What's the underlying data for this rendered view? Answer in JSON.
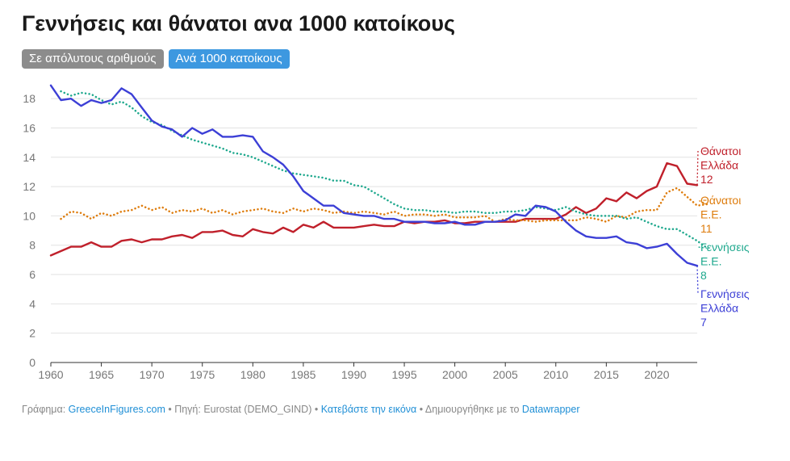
{
  "title": "Γεννήσεις και θάνατοι ανα 1000 κατοίκους",
  "toggles": {
    "absolute": "Σε απόλυτους αριθμούς",
    "per1000": "Ανά 1000 κατοίκους"
  },
  "colors": {
    "deaths_gr": "#c0202b",
    "deaths_eu": "#de7c0c",
    "births_eu": "#1ea88d",
    "births_gr": "#3c3fd6",
    "grid": "#e2e2e2",
    "axis": "#333333"
  },
  "footer": {
    "chart_by_label": "Γράφημα:",
    "chart_by_link": "GreeceInFigures.com",
    "source": "• Πηγή: Eurostat (DEMO_GIND) •",
    "download": "Κατεβάστε την εικόνα",
    "made_with": "• Δημιουργήθηκε με το",
    "datawrapper": "Datawrapper"
  },
  "chart_data": {
    "type": "line",
    "title": "Γεννήσεις και θάνατοι ανα 1000 κατοίκους",
    "xlabel": "",
    "ylabel": "",
    "xlim": [
      1960,
      2024
    ],
    "ylim": [
      0,
      19
    ],
    "x_ticks": [
      "1960",
      "1965",
      "1970",
      "1975",
      "1980",
      "1985",
      "1990",
      "1995",
      "2000",
      "2005",
      "2010",
      "2015",
      "2020"
    ],
    "y_ticks": [
      "0",
      "2",
      "4",
      "6",
      "8",
      "10",
      "12",
      "14",
      "16",
      "18"
    ],
    "series": [
      {
        "key": "deaths_gr",
        "name": "Θάνατοι Ελλάδα",
        "label_lines": [
          "Θάνατοι",
          "Ελλάδα"
        ],
        "end_value": "12",
        "style": "solid",
        "x_start": 1960,
        "values": [
          7.3,
          7.6,
          7.9,
          7.9,
          8.2,
          7.9,
          7.9,
          8.3,
          8.4,
          8.2,
          8.4,
          8.4,
          8.6,
          8.7,
          8.5,
          8.9,
          8.9,
          9.0,
          8.7,
          8.6,
          9.1,
          8.9,
          8.8,
          9.2,
          8.9,
          9.4,
          9.2,
          9.6,
          9.2,
          9.2,
          9.2,
          9.3,
          9.4,
          9.3,
          9.3,
          9.6,
          9.5,
          9.6,
          9.6,
          9.7,
          9.5,
          9.5,
          9.6,
          9.6,
          9.6,
          9.6,
          9.6,
          9.8,
          9.8,
          9.8,
          9.8,
          10.1,
          10.6,
          10.2,
          10.5,
          11.2,
          11.0,
          11.6,
          11.2,
          11.7,
          12.0,
          13.6,
          13.4,
          12.2,
          12.1
        ]
      },
      {
        "key": "deaths_eu",
        "name": "Θάνατοι Ε.Ε.",
        "label_lines": [
          "Θάνατοι",
          "Ε.Ε."
        ],
        "end_value": "11",
        "style": "dotted",
        "x_start": 1961,
        "values": [
          9.8,
          10.3,
          10.2,
          9.8,
          10.2,
          10.0,
          10.3,
          10.4,
          10.7,
          10.4,
          10.6,
          10.2,
          10.4,
          10.3,
          10.5,
          10.2,
          10.4,
          10.1,
          10.3,
          10.4,
          10.5,
          10.3,
          10.2,
          10.5,
          10.3,
          10.5,
          10.4,
          10.2,
          10.3,
          10.2,
          10.3,
          10.2,
          10.1,
          10.3,
          10.0,
          10.1,
          10.1,
          10.0,
          10.1,
          9.9,
          9.9,
          9.9,
          10.0,
          9.6,
          9.8,
          9.7,
          9.7,
          9.6,
          9.7,
          9.7,
          9.7,
          9.7,
          9.9,
          9.8,
          9.6,
          10.0,
          9.9,
          10.3,
          10.4,
          10.4,
          11.6,
          11.9,
          11.3,
          10.7,
          10.8
        ]
      },
      {
        "key": "births_eu",
        "name": "Γεννήσεις Ε.Ε.",
        "label_lines": [
          "Γεννήσεις",
          "Ε.Ε."
        ],
        "end_value": "8",
        "style": "dotted",
        "x_start": 1961,
        "values": [
          18.5,
          18.2,
          18.4,
          18.3,
          17.9,
          17.6,
          17.8,
          17.4,
          16.8,
          16.4,
          16.2,
          15.8,
          15.5,
          15.2,
          15.0,
          14.8,
          14.6,
          14.3,
          14.2,
          14.0,
          13.7,
          13.4,
          13.1,
          12.9,
          12.8,
          12.7,
          12.6,
          12.4,
          12.4,
          12.1,
          12.0,
          11.6,
          11.2,
          10.8,
          10.5,
          10.4,
          10.4,
          10.3,
          10.3,
          10.2,
          10.3,
          10.3,
          10.2,
          10.2,
          10.3,
          10.3,
          10.4,
          10.6,
          10.5,
          10.4,
          10.6,
          10.3,
          10.1,
          10.0,
          10.0,
          10.0,
          9.8,
          9.9,
          9.6,
          9.3,
          9.1,
          9.1,
          8.7,
          8.3,
          7.8
        ]
      },
      {
        "key": "births_gr",
        "name": "Γεννήσεις Ελλάδα",
        "label_lines": [
          "Γεννήσεις",
          "Ελλάδα"
        ],
        "end_value": "7",
        "style": "solid",
        "x_start": 1960,
        "values": [
          18.9,
          17.9,
          18.0,
          17.5,
          17.9,
          17.7,
          17.9,
          18.7,
          18.3,
          17.4,
          16.5,
          16.1,
          15.9,
          15.4,
          16.0,
          15.6,
          15.9,
          15.4,
          15.4,
          15.5,
          15.4,
          14.4,
          14.0,
          13.5,
          12.7,
          11.7,
          11.2,
          10.7,
          10.7,
          10.2,
          10.1,
          10.0,
          10.0,
          9.8,
          9.8,
          9.6,
          9.6,
          9.6,
          9.5,
          9.5,
          9.6,
          9.4,
          9.4,
          9.6,
          9.6,
          9.7,
          10.1,
          10.0,
          10.7,
          10.6,
          10.3,
          9.6,
          9.0,
          8.6,
          8.5,
          8.5,
          8.6,
          8.2,
          8.1,
          7.8,
          7.9,
          8.1,
          7.4,
          6.8,
          6.6
        ]
      }
    ]
  }
}
